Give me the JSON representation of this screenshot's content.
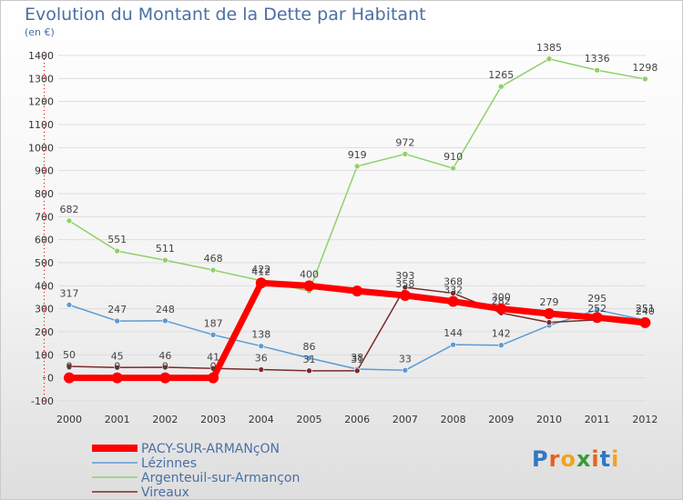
{
  "title": "Evolution du Montant de la Dette par Habitant",
  "unit": "(en €)",
  "logo": "Proxiti",
  "colors": {
    "title": "#4a6fa5",
    "grid": "#dddddd",
    "logo": [
      "#2f78c4",
      "#e7611c",
      "#f0a41e",
      "#3a9b3a",
      "#e7611c",
      "#2f78c4",
      "#f0a41e"
    ]
  },
  "chart_data": {
    "type": "line",
    "title": "Evolution du Montant de la Dette par Habitant",
    "ylabel": "(en €)",
    "xlabel": "",
    "x": [
      "2000",
      "2001",
      "2002",
      "2003",
      "2004",
      "2005",
      "2006",
      "2007",
      "2008",
      "2009",
      "2010",
      "2011",
      "2012"
    ],
    "ylim": [
      -100,
      1400
    ],
    "yticks": [
      -100,
      0,
      100,
      200,
      300,
      400,
      500,
      600,
      700,
      800,
      900,
      1000,
      1100,
      1200,
      1300,
      1400
    ],
    "grid": false,
    "legend_position": "bottom-left",
    "series": [
      {
        "name": "Argenteuil-sur-Armançon",
        "color": "#8fd16a",
        "values": [
          682,
          551,
          511,
          468,
          422,
          377,
          919,
          972,
          910,
          1265,
          1385,
          1336,
          1298
        ],
        "labels": [
          "682",
          "551",
          "511",
          "468",
          "422",
          "",
          "919",
          "972",
          "910",
          "1265",
          "1385",
          "1336",
          "1298"
        ],
        "line_width": 1.5,
        "marker_radius": 3
      },
      {
        "name": "Lézinnes",
        "color": "#5b9bd5",
        "values": [
          317,
          247,
          248,
          187,
          138,
          86,
          38,
          33,
          144,
          142,
          228,
          295,
          251
        ],
        "labels": [
          "317",
          "247",
          "248",
          "187",
          "138",
          "86",
          "38",
          "33",
          "144",
          "142",
          "",
          "295",
          "251"
        ],
        "line_width": 1.5,
        "marker_radius": 3
      },
      {
        "name": "Vireaux",
        "color": "#7a2a2a",
        "values": [
          50,
          45,
          46,
          41,
          36,
          31,
          31,
          393,
          368,
          282,
          241,
          252,
          241
        ],
        "labels": [
          "50",
          "45",
          "46",
          "41",
          "36",
          "31",
          "31",
          "393",
          "368",
          "282",
          "",
          "252",
          ""
        ],
        "line_width": 1.5,
        "marker_radius": 3
      },
      {
        "name": "PACY-SUR-ARMANçON",
        "color": "#ff0000",
        "values": [
          0,
          0,
          0,
          0,
          412,
          400,
          377,
          358,
          332,
          300,
          279,
          262,
          240
        ],
        "labels": [
          "0",
          "0",
          "0",
          "0",
          "412",
          "400",
          "",
          "358",
          "332",
          "300",
          "279",
          "",
          "240"
        ],
        "line_width": 7,
        "marker_radius": 6
      }
    ],
    "legend": [
      {
        "name": "PACY-SUR-ARMANçON",
        "color": "#ff0000",
        "thick": true
      },
      {
        "name": "Lézinnes",
        "color": "#5b9bd5",
        "thick": false
      },
      {
        "name": "Argenteuil-sur-Armançon",
        "color": "#8fd16a",
        "thick": false
      },
      {
        "name": "Vireaux",
        "color": "#7a2a2a",
        "thick": false
      }
    ]
  }
}
